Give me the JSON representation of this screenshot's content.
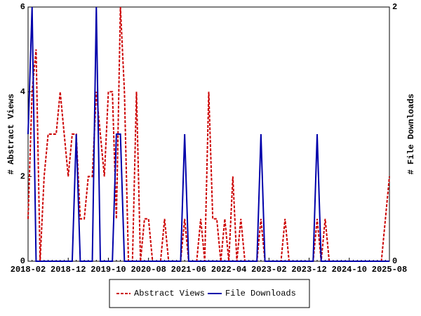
{
  "chart_data": {
    "type": "line",
    "x": [
      "2018-02",
      "2018-03",
      "2018-04",
      "2018-05",
      "2018-06",
      "2018-07",
      "2018-08",
      "2018-09",
      "2018-10",
      "2018-11",
      "2018-12",
      "2019-01",
      "2019-02",
      "2019-03",
      "2019-04",
      "2019-05",
      "2019-06",
      "2019-07",
      "2019-08",
      "2019-09",
      "2019-10",
      "2019-11",
      "2019-12",
      "2020-01",
      "2020-02",
      "2020-03",
      "2020-04",
      "2020-05",
      "2020-06",
      "2020-07",
      "2020-08",
      "2020-09",
      "2020-10",
      "2020-11",
      "2020-12",
      "2021-01",
      "2021-02",
      "2021-03",
      "2021-04",
      "2021-05",
      "2021-06",
      "2021-07",
      "2021-08",
      "2021-09",
      "2021-10",
      "2021-11",
      "2021-12",
      "2022-01",
      "2022-02",
      "2022-03",
      "2022-04",
      "2022-05",
      "2022-06",
      "2022-07",
      "2022-08",
      "2022-09",
      "2022-10",
      "2022-11",
      "2022-12",
      "2023-01",
      "2023-02",
      "2023-03",
      "2023-04",
      "2023-05",
      "2023-06",
      "2023-07",
      "2023-08",
      "2023-09",
      "2023-10",
      "2023-11",
      "2023-12",
      "2024-01",
      "2024-02",
      "2024-03",
      "2024-04",
      "2024-05",
      "2024-06",
      "2024-07",
      "2024-08",
      "2024-09",
      "2024-10",
      "2024-11",
      "2024-12",
      "2025-01",
      "2025-02",
      "2025-03",
      "2025-04",
      "2025-05",
      "2025-06",
      "2025-07",
      "2025-08"
    ],
    "series": [
      {
        "name": "Abstract Views",
        "color": "#cc0000",
        "dash": true,
        "values": [
          1,
          4,
          5,
          0,
          2,
          3,
          3,
          3,
          4,
          3,
          2,
          3,
          3,
          1,
          1,
          2,
          2,
          4,
          3,
          2,
          4,
          4,
          1,
          6,
          4,
          0,
          0,
          4,
          0,
          1,
          1,
          0,
          0,
          0,
          1,
          0,
          0,
          0,
          0,
          1,
          0,
          0,
          0,
          1,
          0,
          4,
          1,
          1,
          0,
          1,
          0,
          2,
          0,
          1,
          0,
          0,
          0,
          0,
          1,
          0,
          0,
          0,
          0,
          0,
          1,
          0,
          0,
          0,
          0,
          0,
          0,
          0,
          1,
          0,
          1,
          0,
          0,
          0,
          0,
          0,
          0,
          0,
          0,
          0,
          0,
          0,
          0,
          0,
          0,
          1,
          2
        ]
      },
      {
        "name": "File Downloads",
        "color": "#0000aa",
        "dash": false,
        "axis": "y2",
        "values": [
          1,
          2,
          0,
          0,
          0,
          0,
          0,
          0,
          0,
          0,
          0,
          0,
          1,
          0,
          0,
          0,
          0,
          2,
          0,
          0,
          0,
          0,
          1,
          1,
          0,
          0,
          0,
          0,
          0,
          0,
          0,
          0,
          0,
          0,
          0,
          0,
          0,
          0,
          0,
          1,
          0,
          0,
          0,
          0,
          0,
          0,
          0,
          0,
          0,
          0,
          0,
          0,
          0,
          0,
          0,
          0,
          0,
          0,
          1,
          0,
          0,
          0,
          0,
          0,
          0,
          0,
          0,
          0,
          0,
          0,
          0,
          0,
          1,
          0,
          0,
          0,
          0,
          0,
          0,
          0,
          0,
          0,
          0,
          0,
          0,
          0,
          0,
          0,
          0,
          0,
          0
        ]
      }
    ],
    "ylabel": "# Abstract Views",
    "y2label": "# File Downloads",
    "ylim": [
      0,
      6
    ],
    "yticks": [
      0,
      2,
      4,
      6
    ],
    "y2lim": [
      0,
      2
    ],
    "y2ticks": [
      0,
      2
    ],
    "legend": "bottom"
  }
}
